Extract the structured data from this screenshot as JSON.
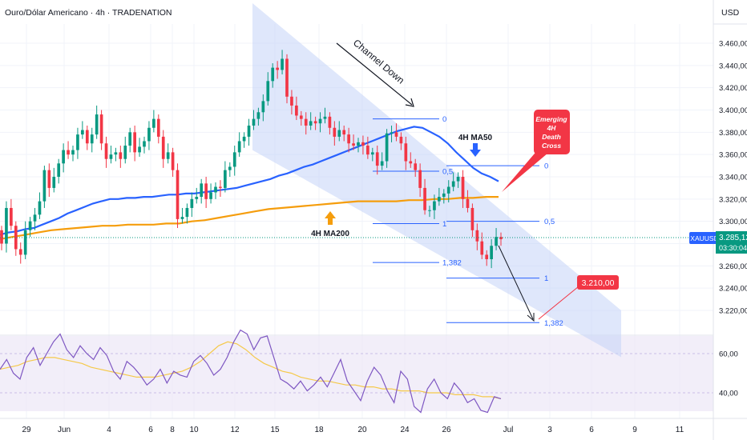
{
  "header": {
    "title": "Ouro/Dólar Americano · 4h · TRADENATION",
    "currency": "USD"
  },
  "colors": {
    "bull": "#089981",
    "bear": "#f23645",
    "ma50": "#2962ff",
    "ma200": "#f59d0c",
    "rsi": "#7e57c2",
    "rsi_ma": "#f5c94a",
    "channel": "#b3c6f5",
    "fib": "#2962ff",
    "label_red": "#f23645"
  },
  "annotations": {
    "channel": "Channel Down",
    "ma50": "4H MA50",
    "ma200": "4H MA200",
    "death_cross": [
      "Emerging",
      "4H",
      "Death",
      "Cross"
    ],
    "target": "3.210,00"
  },
  "price_tag": {
    "symbol": "XAUUSD",
    "price": "3.285,12",
    "countdown": "03:30:04"
  },
  "chart_data": [
    {
      "type": "candlestick",
      "title": "Ouro/Dólar Americano · 4h · TRADENATION",
      "y_ticks": [
        "3.460,00",
        "3.440,00",
        "3.420,00",
        "3.400,00",
        "3.380,00",
        "3.360,00",
        "3.340,00",
        "3.320,00",
        "3.300,00",
        "3.280,00",
        "3.260,00",
        "3.240,00",
        "3.220,00"
      ],
      "y_tick_values": [
        3460,
        3440,
        3420,
        3400,
        3380,
        3360,
        3340,
        3320,
        3300,
        3280,
        3260,
        3240,
        3220
      ],
      "ylim": [
        3198,
        3500
      ],
      "x_ticks": [
        "29",
        "Jun",
        "4",
        "6",
        "8",
        "10",
        "12",
        "15",
        "18",
        "20",
        "24",
        "26",
        "Jul",
        "3",
        "6",
        "9",
        "11"
      ],
      "series_close": [
        3280,
        3312,
        3296,
        3275,
        3270,
        3292,
        3300,
        3306,
        3318,
        3346,
        3330,
        3340,
        3352,
        3364,
        3360,
        3364,
        3378,
        3382,
        3370,
        3378,
        3396,
        3370,
        3356,
        3360,
        3362,
        3356,
        3368,
        3380,
        3362,
        3367,
        3372,
        3384,
        3392,
        3376,
        3356,
        3362,
        3346,
        3302,
        3304,
        3312,
        3320,
        3322,
        3334,
        3320,
        3326,
        3331,
        3330,
        3346,
        3349,
        3362,
        3372,
        3376,
        3386,
        3392,
        3398,
        3408,
        3426,
        3438,
        3436,
        3446,
        3412,
        3404,
        3395,
        3392,
        3386,
        3390,
        3388,
        3392,
        3394,
        3384,
        3376,
        3382,
        3378,
        3370,
        3368,
        3371,
        3368,
        3360,
        3362,
        3350,
        3354,
        3379,
        3380,
        3376,
        3370,
        3354,
        3352,
        3346,
        3330,
        3310,
        3310,
        3318,
        3322,
        3325,
        3331,
        3336,
        3340,
        3320,
        3312,
        3292,
        3282,
        3270,
        3266,
        3278,
        3286,
        3284
      ],
      "series": [
        {
          "name": "4H MA50",
          "values": [
            3288,
            3290,
            3291,
            3293,
            3294,
            3297,
            3300,
            3303,
            3307,
            3310,
            3313,
            3316,
            3318,
            3320,
            3320,
            3321,
            3321,
            3322,
            3322,
            3323,
            3324,
            3324,
            3325,
            3325,
            3326,
            3327,
            3328,
            3329,
            3330,
            3332,
            3334,
            3336,
            3338,
            3341,
            3343,
            3346,
            3349,
            3351,
            3354,
            3357,
            3360,
            3363,
            3366,
            3369,
            3372,
            3375,
            3378,
            3381,
            3383,
            3385,
            3384,
            3380,
            3376,
            3370,
            3362,
            3355,
            3348,
            3343,
            3340,
            3336
          ]
        },
        {
          "name": "4H MA200",
          "values": [
            3284,
            3286,
            3288,
            3290,
            3292,
            3293,
            3294,
            3295,
            3296,
            3296,
            3297,
            3297,
            3297,
            3298,
            3298,
            3300,
            3301,
            3303,
            3305,
            3307,
            3309,
            3311,
            3312,
            3313,
            3314,
            3315,
            3316,
            3317,
            3318,
            3318,
            3318,
            3318,
            3319,
            3319,
            3320,
            3320,
            3321,
            3321,
            3322,
            3322
          ]
        }
      ],
      "channel": {
        "upper": [
          [
            3408,
            0.0
          ],
          [
            3220,
            1.0
          ]
        ],
        "lower": [
          [
            3364,
            0.0
          ],
          [
            3178,
            1.0
          ]
        ]
      },
      "fib_left": [
        {
          "label": "0",
          "value": 3392
        },
        {
          "label": "0,5",
          "value": 3345
        },
        {
          "label": "1",
          "value": 3298
        },
        {
          "label": "1,382",
          "value": 3263
        }
      ],
      "fib_right": [
        {
          "label": "0",
          "value": 3350
        },
        {
          "label": "0,5",
          "value": 3300
        },
        {
          "label": "1",
          "value": 3249
        },
        {
          "label": "1,382",
          "value": 3209
        }
      ],
      "target_value": 3210
    },
    {
      "type": "line",
      "title": "",
      "y_ticks": [
        "60,00",
        "40,00"
      ],
      "y_tick_values": [
        60,
        40
      ],
      "ylim": [
        28,
        70
      ],
      "series": [
        {
          "name": "RSI",
          "values": [
            52,
            57,
            50,
            47,
            58,
            63,
            54,
            60,
            66,
            70,
            62,
            58,
            64,
            60,
            57,
            63,
            59,
            51,
            47,
            56,
            53,
            49,
            44,
            47,
            52,
            45,
            51,
            49,
            48,
            56,
            59,
            55,
            49,
            52,
            58,
            66,
            72,
            70,
            62,
            68,
            69,
            58,
            47,
            45,
            42,
            46,
            41,
            44,
            48,
            43,
            50,
            57,
            46,
            41,
            36,
            46,
            53,
            49,
            41,
            35,
            51,
            47,
            33,
            30,
            42,
            47,
            40,
            37,
            45,
            41,
            35,
            37,
            31,
            30,
            38,
            37
          ]
        },
        {
          "name": "RSI MA",
          "values": [
            52,
            53,
            54,
            56,
            57,
            58,
            58,
            57,
            56,
            55,
            53,
            52,
            51,
            50,
            49,
            48,
            48,
            48,
            49,
            50,
            51,
            53,
            56,
            60,
            64,
            66,
            65,
            62,
            58,
            55,
            53,
            51,
            50,
            48,
            47,
            46,
            46,
            45,
            44,
            44,
            43,
            43,
            42,
            42,
            41,
            41,
            41,
            40,
            40,
            40,
            39,
            39,
            39,
            38,
            38,
            37
          ]
        }
      ]
    }
  ]
}
